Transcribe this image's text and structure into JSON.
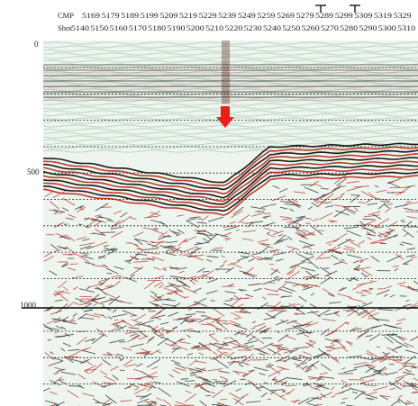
{
  "header": {
    "cmp_label": "CMP",
    "shot_label": "Shot",
    "cmp_numbers": [
      5169,
      5179,
      5189,
      5199,
      5209,
      5219,
      5229,
      5239,
      5249,
      5259,
      5269,
      5279,
      5289,
      5299,
      5309,
      5319,
      5329
    ],
    "shot_numbers": [
      5140,
      5150,
      5160,
      5170,
      5180,
      5190,
      5200,
      5210,
      5220,
      5230,
      5240,
      5250,
      5260,
      5270,
      5280,
      5290,
      5300,
      5310
    ]
  },
  "depth_axis": {
    "labels": [
      "0",
      "500",
      "1000"
    ]
  }
}
